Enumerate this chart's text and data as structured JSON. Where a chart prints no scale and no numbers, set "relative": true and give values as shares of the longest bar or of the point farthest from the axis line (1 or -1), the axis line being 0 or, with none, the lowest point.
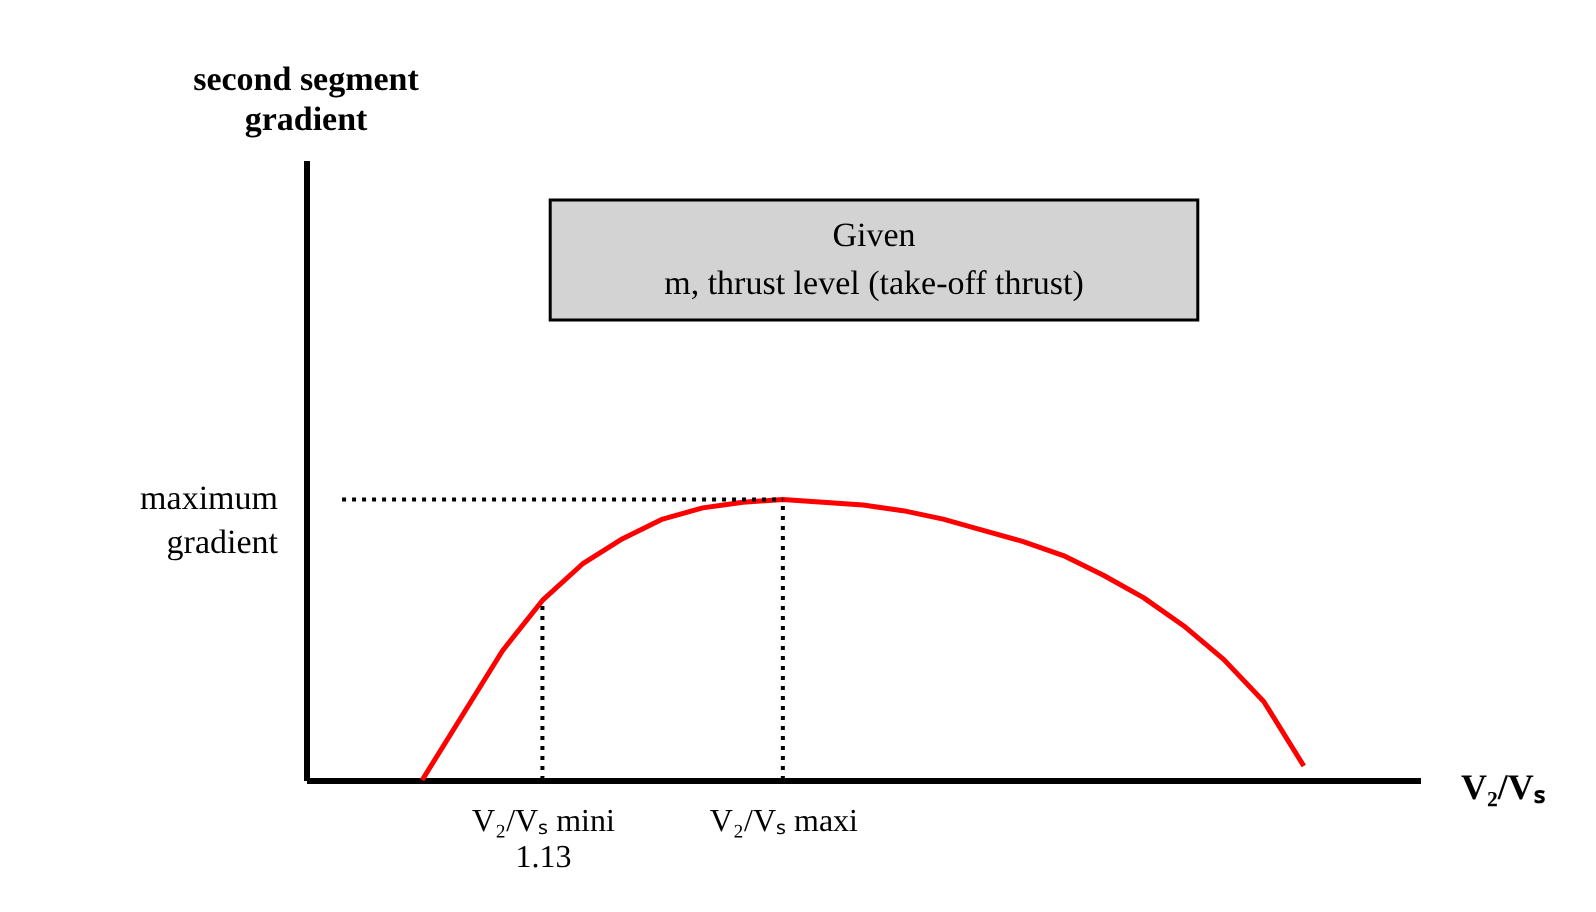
{
  "chart_data": {
    "type": "line",
    "relative": true,
    "xlabel": "V₂/Vₛ",
    "categories": [
      null,
      null,
      null,
      null,
      null,
      "V₂/Vₛ mini\n1.13",
      null,
      null,
      null,
      null,
      null,
      "V₂/Vₛ maxi",
      null,
      null,
      null,
      null,
      null,
      null,
      null,
      null,
      null,
      null,
      null,
      null,
      null,
      null,
      null
    ],
    "series": [
      {
        "color": "#ff0000",
        "values": [
          null,
          null,
          0,
          0.23,
          0.46,
          0.64,
          0.77,
          0.86,
          0.93,
          0.97,
          0.99,
          1,
          0.99,
          0.98,
          0.96,
          0.93,
          0.89,
          0.85,
          0.8,
          0.73,
          0.65,
          0.55,
          0.43,
          0.28,
          0.05,
          null,
          null
        ]
      }
    ],
    "ref_lines": [
      {
        "axis": "y",
        "value": 1,
        "label": "maximum\ngradient",
        "line_style": "dotted"
      },
      {
        "axis": "x",
        "value": "V₂/Vₛ mini\n1.13",
        "line_style": "dotted"
      },
      {
        "axis": "x",
        "value": "V₂/Vₛ maxi",
        "line_style": "dotted"
      }
    ],
    "annotations": [
      "second segment gradient",
      "Given\nm, thrust level (take-off thrust)"
    ],
    "grid": false,
    "marker": "none",
    "line_style": "solid"
  }
}
